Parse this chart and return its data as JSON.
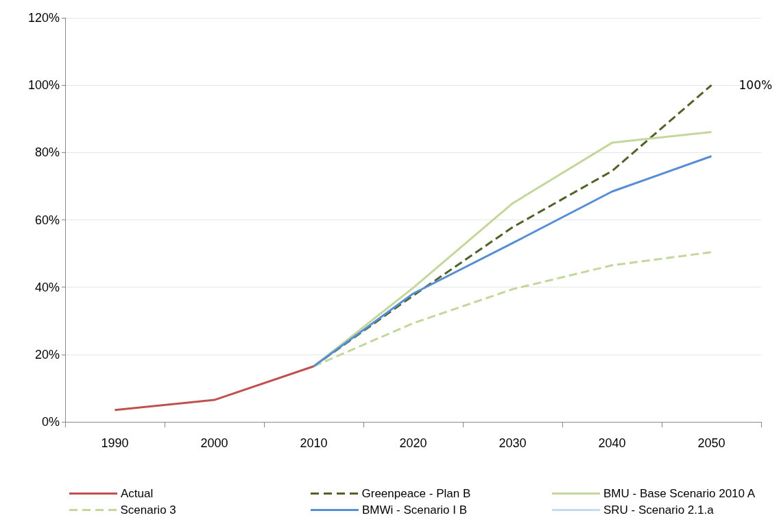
{
  "chart_data": {
    "type": "line",
    "categories": [
      "1990",
      "2000",
      "2010",
      "2020",
      "2030",
      "2040",
      "2050"
    ],
    "ylim": [
      0,
      120
    ],
    "yticks": [
      {
        "value": 0,
        "label": "0%"
      },
      {
        "value": 20,
        "label": "20%"
      },
      {
        "value": 40,
        "label": "40%"
      },
      {
        "value": 60,
        "label": "60%"
      },
      {
        "value": 80,
        "label": "80%"
      },
      {
        "value": 100,
        "label": "100%"
      },
      {
        "value": 120,
        "label": "120%"
      }
    ],
    "grid": "y",
    "legend": "bottom",
    "marker": "none",
    "line_style": "solid",
    "annotations": [
      {
        "text": "100%",
        "x": "2050",
        "y": 100
      }
    ],
    "series": [
      {
        "name": "Actual",
        "color": "#c0504d",
        "values": [
          3.5,
          6.5,
          16.5,
          null,
          null,
          null,
          null
        ]
      },
      {
        "name": "Greenpeace - Plan B",
        "color": "#4f6228",
        "line_style": "dashed",
        "values": [
          null,
          null,
          16.5,
          37.5,
          57.8,
          74.5,
          100
        ]
      },
      {
        "name": "BMU - Base Scenario 2010 A",
        "color": "#c3d69b",
        "values": [
          null,
          null,
          16.5,
          39.8,
          64.9,
          82.9,
          86.1
        ]
      },
      {
        "name": "Scenario 3",
        "color": "#c3d69b",
        "line_style": "dashed",
        "values": [
          null,
          null,
          16.5,
          29.3,
          39.4,
          46.5,
          50.4
        ]
      },
      {
        "name": "BMWi - Scenario I B",
        "color": "#558ed5",
        "values": [
          null,
          null,
          16.5,
          38.1,
          53.1,
          68.4,
          78.9
        ]
      },
      {
        "name": "SRU - Scenario 2.1.a",
        "color": "#c6d9f1",
        "values": [
          null,
          null,
          null,
          null,
          null,
          null,
          null
        ]
      }
    ]
  }
}
